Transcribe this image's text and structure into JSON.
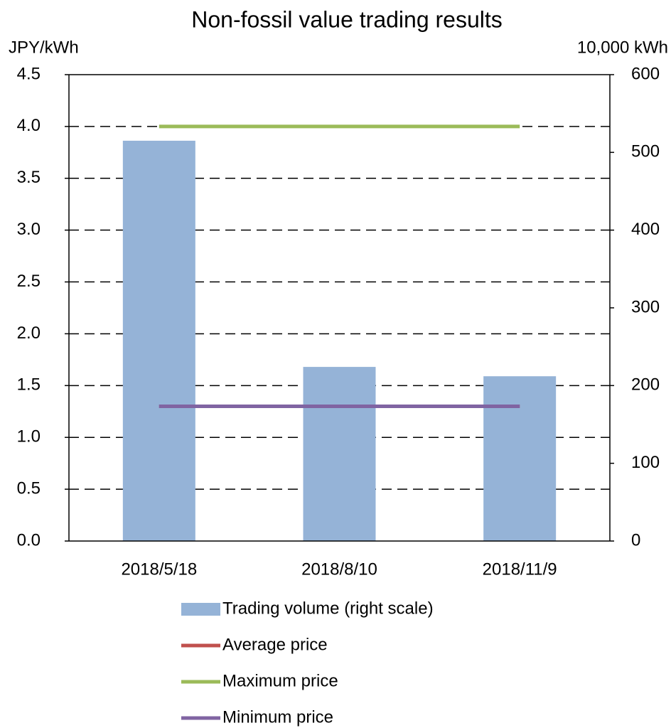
{
  "chart_data": {
    "type": "bar",
    "title": "Non-fossil value trading results",
    "y_label": "JPY/kWh",
    "y2_label": "10,000 kWh",
    "categories": [
      "2018/5/18",
      "2018/8/10",
      "2018/11/9"
    ],
    "series": [
      {
        "name": "Trading volume (right scale)",
        "type": "bar",
        "axis": "y2",
        "color": "#95b3d7",
        "values": [
          515,
          224,
          212
        ]
      },
      {
        "name": "Average price",
        "type": "line",
        "color": "#c0504d",
        "values": [
          1.3,
          1.3,
          1.3
        ]
      },
      {
        "name": "Maximum price",
        "type": "line",
        "color": "#9bbb59",
        "values": [
          4.0,
          4.0,
          4.0
        ]
      },
      {
        "name": "Minimum price",
        "type": "line",
        "color": "#8064a2",
        "values": [
          1.3,
          1.3,
          1.3
        ]
      }
    ],
    "ylim": [
      0,
      4.5
    ],
    "yticks": [
      {
        "value": 0,
        "label": "0.0"
      },
      0.5,
      {
        "value": 1,
        "label": "1.0"
      },
      1.5,
      {
        "value": 2,
        "label": "2.0"
      },
      2.5,
      {
        "value": 3,
        "label": "3.0"
      },
      3.5,
      {
        "value": 4,
        "label": "4.0"
      },
      4.5
    ],
    "y2lim": [
      0,
      600
    ],
    "y2ticks": [
      0,
      100,
      200,
      300,
      400,
      500,
      600
    ],
    "grid": true,
    "legend": "bottom"
  }
}
